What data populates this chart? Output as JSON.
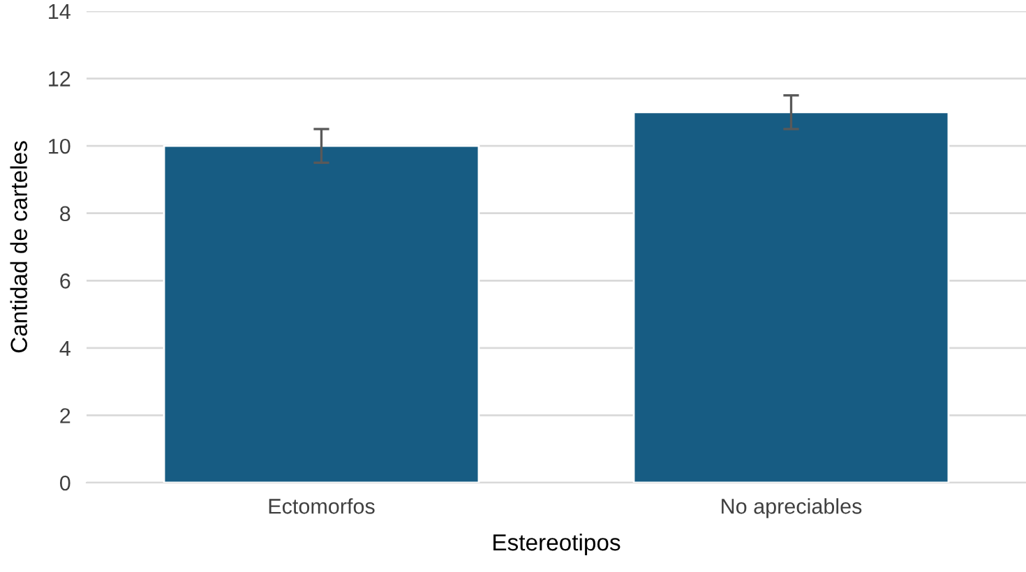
{
  "chart_data": {
    "type": "bar",
    "xlabel": "Estereotipos",
    "ylabel": "Cantidad de carteles",
    "categories": [
      "Ectomorfos",
      "No apreciables"
    ],
    "values": [
      10,
      11
    ],
    "errors": [
      0.5,
      0.5
    ],
    "color": "#175c83",
    "ylim": [
      0,
      14
    ],
    "yticks": [
      0,
      2,
      4,
      6,
      8,
      10,
      12,
      14
    ],
    "grid": "y"
  }
}
